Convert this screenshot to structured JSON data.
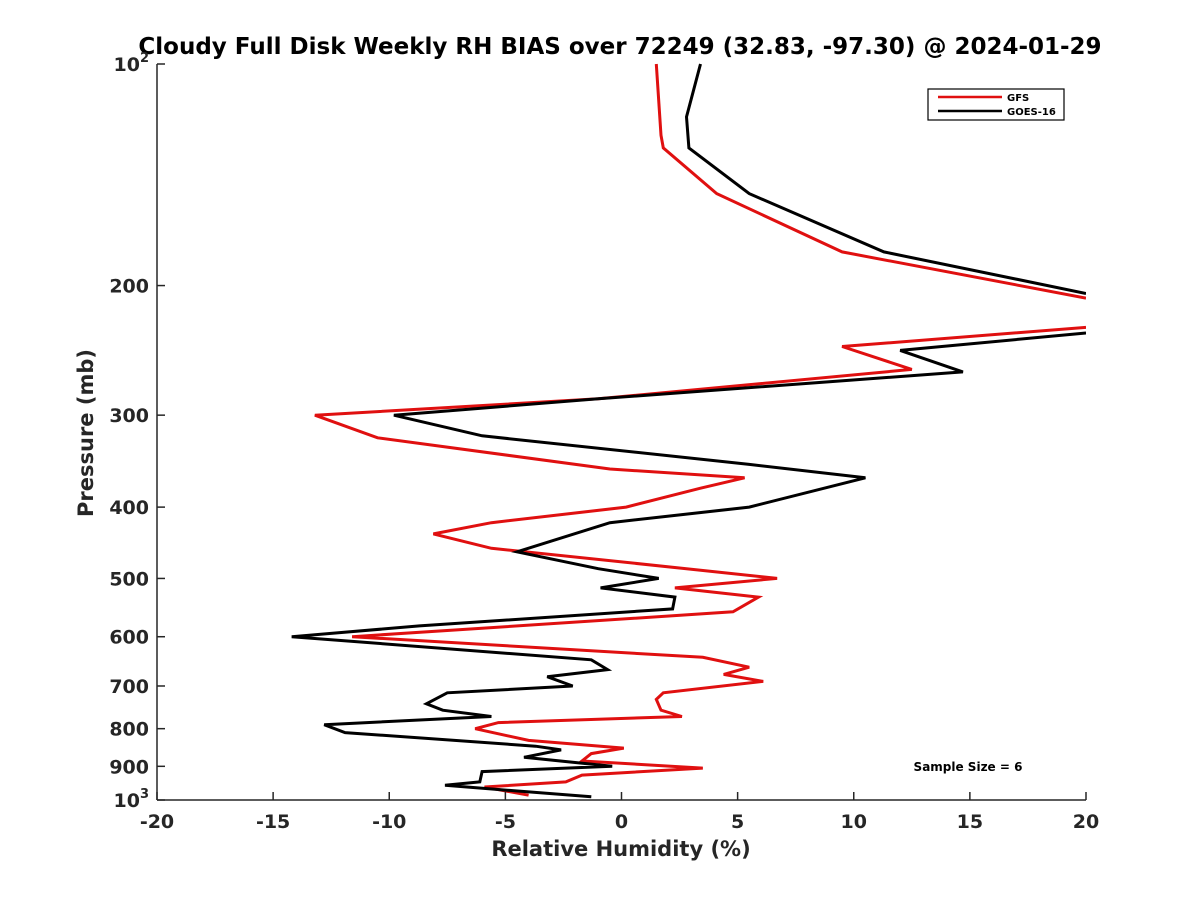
{
  "chart_data": {
    "type": "line",
    "title": "Cloudy Full Disk Weekly RH BIAS over 72249 (32.83, -97.30) @ 2024-01-29",
    "xlabel": "Relative Humidity (%)",
    "ylabel": "Pressure (mb)",
    "xlim": [
      -20,
      20
    ],
    "ylim": [
      100,
      1000
    ],
    "y_scale": "log",
    "y_reversed": true,
    "x_ticks": [
      -20,
      -15,
      -10,
      -5,
      0,
      5,
      10,
      15,
      20
    ],
    "x_tick_labels": [
      "-20",
      "-15",
      "-10",
      "-5",
      "0",
      "5",
      "10",
      "15",
      "20"
    ],
    "y_ticks": [
      100,
      200,
      300,
      400,
      500,
      600,
      700,
      800,
      900,
      1000
    ],
    "y_tick_labels": [
      {
        "base": "10",
        "sup": "2"
      },
      {
        "base": "200",
        "sup": ""
      },
      {
        "base": "300",
        "sup": ""
      },
      {
        "base": "400",
        "sup": ""
      },
      {
        "base": "500",
        "sup": ""
      },
      {
        "base": "600",
        "sup": ""
      },
      {
        "base": "700",
        "sup": ""
      },
      {
        "base": "800",
        "sup": ""
      },
      {
        "base": "900",
        "sup": ""
      },
      {
        "base": "10",
        "sup": "3"
      }
    ],
    "grid": false,
    "legend_position": "top-right",
    "annotation": "Sample Size = 6",
    "series": [
      {
        "name": "GFS",
        "color": "#e01010",
        "points": [
          [
            1.5,
            100
          ],
          [
            1.7,
            125
          ],
          [
            1.8,
            130
          ],
          [
            4.1,
            150
          ],
          [
            9.5,
            180
          ],
          [
            20,
            208
          ],
          [
            null,
            210
          ],
          [
            20,
            228
          ],
          [
            9.5,
            242
          ],
          [
            12.5,
            260
          ],
          [
            -1,
            285
          ],
          [
            -13.2,
            300
          ],
          [
            -10.5,
            322
          ],
          [
            -0.5,
            355
          ],
          [
            5.3,
            365
          ],
          [
            3.4,
            377
          ],
          [
            0.2,
            400
          ],
          [
            -5.6,
            420
          ],
          [
            -8.1,
            435
          ],
          [
            -5.6,
            455
          ],
          [
            2.8,
            485
          ],
          [
            6.7,
            500
          ],
          [
            2.3,
            515
          ],
          [
            5.9,
            530
          ],
          [
            4.8,
            555
          ],
          [
            -11.6,
            600
          ],
          [
            3.5,
            640
          ],
          [
            5.5,
            660
          ],
          [
            4.4,
            675
          ],
          [
            6.1,
            690
          ],
          [
            1.8,
            715
          ],
          [
            1.5,
            730
          ],
          [
            1.7,
            755
          ],
          [
            2.6,
            770
          ],
          [
            -5.3,
            785
          ],
          [
            -6.3,
            800
          ],
          [
            -4,
            830
          ],
          [
            0.1,
            850
          ],
          [
            -1.3,
            865
          ],
          [
            -1.7,
            885
          ],
          [
            3.5,
            905
          ],
          [
            -1.7,
            925
          ],
          [
            -2.4,
            945
          ],
          [
            -5.9,
            960
          ],
          [
            -4,
            985
          ]
        ]
      },
      {
        "name": "GOES-16",
        "color": "#000000",
        "points": [
          [
            3.4,
            100
          ],
          [
            2.8,
            118
          ],
          [
            2.9,
            130
          ],
          [
            5.5,
            150
          ],
          [
            11.3,
            180
          ],
          [
            20,
            205
          ],
          [
            null,
            210
          ],
          [
            20,
            232
          ],
          [
            12,
            245
          ],
          [
            14.7,
            262
          ],
          [
            -1,
            285
          ],
          [
            -9.8,
            300
          ],
          [
            -6,
            320
          ],
          [
            5.5,
            350
          ],
          [
            10.5,
            365
          ],
          [
            5.5,
            400
          ],
          [
            -0.5,
            420
          ],
          [
            -4.5,
            460
          ],
          [
            -1,
            485
          ],
          [
            1.6,
            500
          ],
          [
            -0.9,
            515
          ],
          [
            2.3,
            530
          ],
          [
            2.2,
            550
          ],
          [
            -8.7,
            580
          ],
          [
            -14.2,
            600
          ],
          [
            -1.3,
            645
          ],
          [
            -0.6,
            665
          ],
          [
            -3.2,
            680
          ],
          [
            -2.1,
            700
          ],
          [
            -7.5,
            715
          ],
          [
            -8.4,
            740
          ],
          [
            -7.7,
            755
          ],
          [
            -5.6,
            770
          ],
          [
            -12.8,
            790
          ],
          [
            -11.9,
            810
          ],
          [
            -3.7,
            845
          ],
          [
            -2.6,
            855
          ],
          [
            -4.2,
            875
          ],
          [
            -0.4,
            900
          ],
          [
            -6,
            915
          ],
          [
            -6.1,
            945
          ],
          [
            -7.6,
            955
          ],
          [
            -1.3,
            990
          ]
        ]
      }
    ]
  }
}
